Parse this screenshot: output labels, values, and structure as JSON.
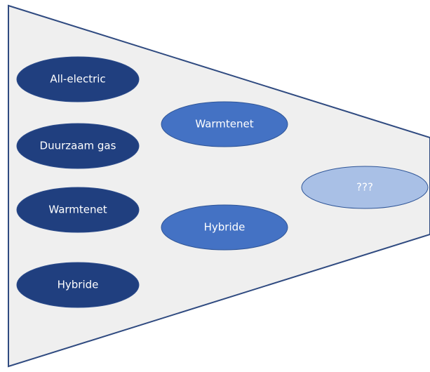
{
  "nodes": [
    {
      "label": "All-electric"
    },
    {
      "label": "Duurzaam gas"
    },
    {
      "label": "Warmtenet"
    },
    {
      "label": "Hybride"
    },
    {
      "label": "Warmtenet"
    },
    {
      "label": "Hybride"
    },
    {
      "label": "???"
    }
  ]
}
